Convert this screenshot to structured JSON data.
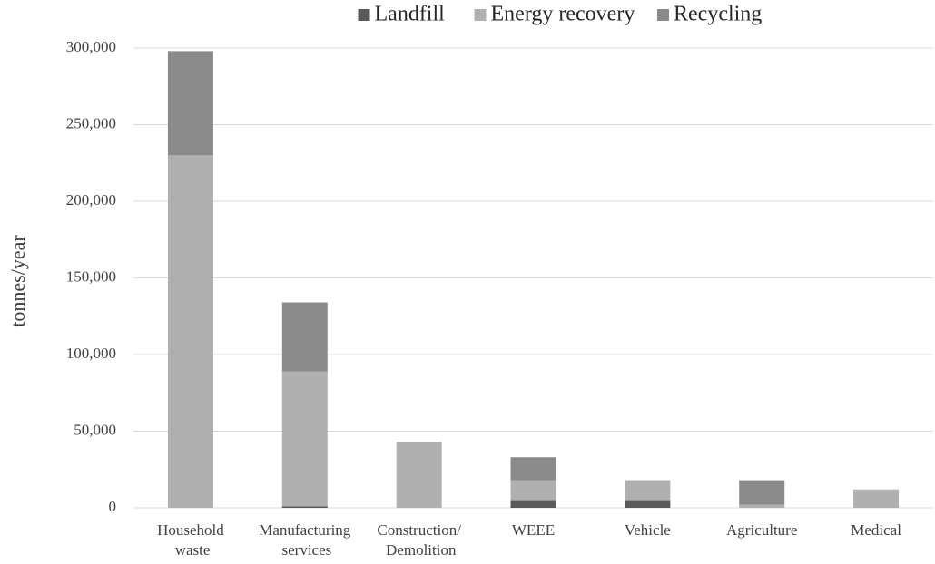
{
  "chart_data": {
    "type": "stacked_bar",
    "y_label": "tonnes/year",
    "categories": [
      "Household waste",
      "Manufacturing services",
      "Construction/ Demolition",
      "WEEE",
      "Vehicle",
      "Agriculture",
      "Medical"
    ],
    "series": [
      {
        "name": "Landfill",
        "color": "#595959",
        "values": [
          0,
          1000,
          0,
          5000,
          5000,
          0,
          0
        ]
      },
      {
        "name": "Energy recovery",
        "color": "#b0b0b0",
        "values": [
          230000,
          88000,
          43000,
          13000,
          13000,
          2000,
          12000
        ]
      },
      {
        "name": "Recycling",
        "color": "#8a8a8a",
        "values": [
          68000,
          45000,
          0,
          15000,
          0,
          16000,
          0
        ]
      }
    ],
    "ylim": [
      0,
      300000
    ],
    "yticks": [
      {
        "value": 0,
        "label": "0"
      },
      {
        "value": 50000,
        "label": "50,000"
      },
      {
        "value": 100000,
        "label": "100,000"
      },
      {
        "value": 150000,
        "label": "150,000"
      },
      {
        "value": 200000,
        "label": "200,000"
      },
      {
        "value": 250000,
        "label": "250,000"
      },
      {
        "value": 300000,
        "label": "300,000"
      }
    ],
    "grid": true,
    "legend": "top"
  }
}
